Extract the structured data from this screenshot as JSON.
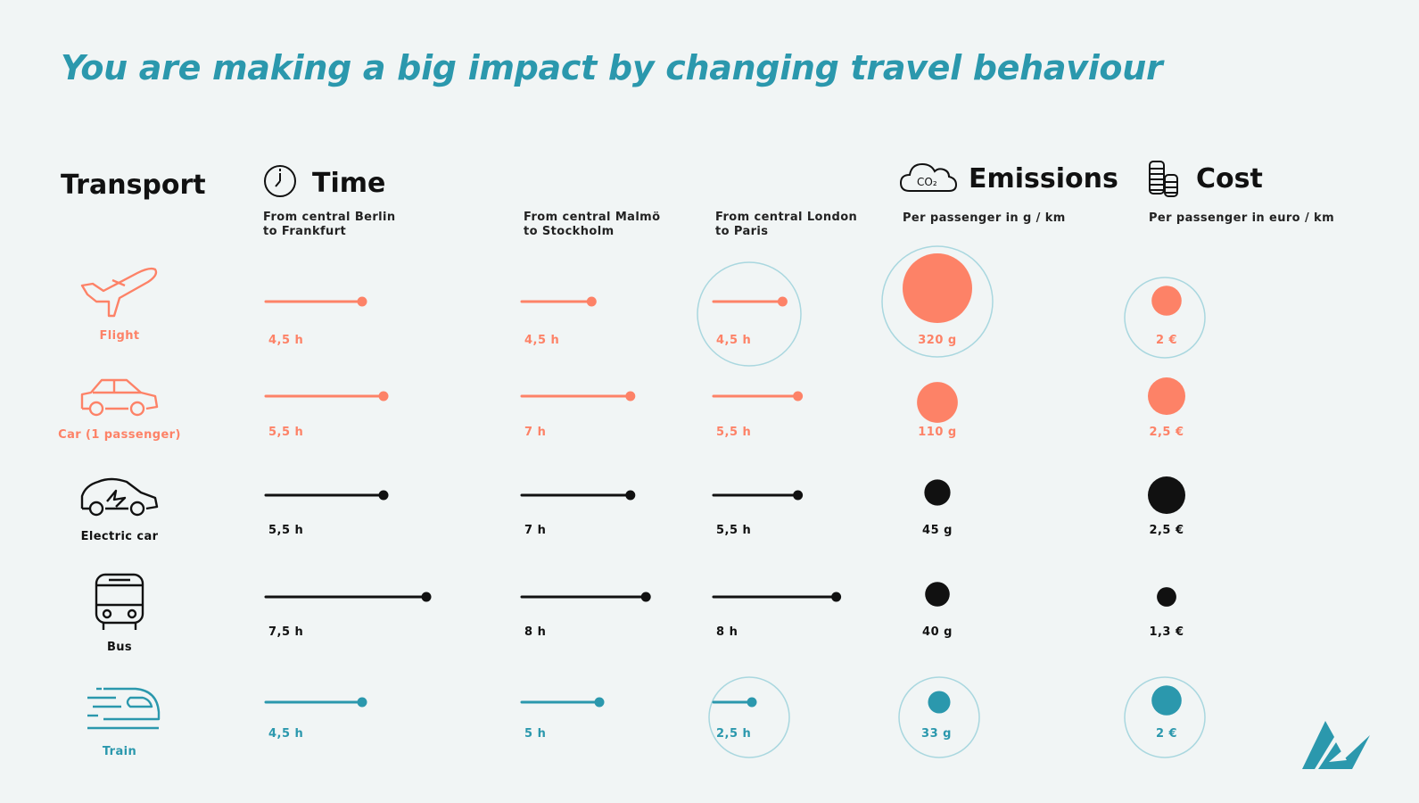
{
  "title": "You are making a big impact by changing travel behaviour",
  "headers": {
    "transport": "Transport",
    "time": "Time",
    "emissions": "Emissions",
    "cost": "Cost"
  },
  "subheaders": {
    "time_berlin": [
      "From central Berlin",
      "to Frankfurt"
    ],
    "time_malmo": [
      "From central Malmö",
      "to Stockholm"
    ],
    "time_london": [
      "From central London",
      "to Paris"
    ],
    "emissions": "Per passenger in g / km",
    "cost": "Per passenger in euro / km"
  },
  "colors": {
    "title": "#2b98ad",
    "salmon": "#fd8267",
    "black": "#111111",
    "teal": "#2b98ad",
    "ring": "#a9d7df"
  },
  "icons": [
    "clock-icon",
    "co2-cloud-icon",
    "coins-icon",
    "airplane-icon",
    "car-icon",
    "electric-car-icon",
    "bus-icon",
    "train-icon",
    "brand-logo-icon"
  ],
  "rows": [
    {
      "key": "flight",
      "label": "Flight",
      "color": "salmon",
      "berlin": {
        "hours": 4.5,
        "text": "4,5 h"
      },
      "malmo": {
        "hours": 4.5,
        "text": "4,5 h"
      },
      "london": {
        "hours": 4.5,
        "text": "4,5 h",
        "ring": true
      },
      "emissions": {
        "value": 320,
        "text": "320 g",
        "ring": true
      },
      "cost": {
        "value": 2,
        "text": "2 €",
        "ring": true
      }
    },
    {
      "key": "car",
      "label": "Car (1 passenger)",
      "color": "salmon",
      "berlin": {
        "hours": 5.5,
        "text": "5,5 h"
      },
      "malmo": {
        "hours": 7,
        "text": "7 h"
      },
      "london": {
        "hours": 5.5,
        "text": "5,5 h",
        "ring": false
      },
      "emissions": {
        "value": 110,
        "text": "110 g",
        "ring": false
      },
      "cost": {
        "value": 2.5,
        "text": "2,5 €",
        "ring": false
      }
    },
    {
      "key": "ecar",
      "label": "Electric car",
      "color": "black",
      "berlin": {
        "hours": 5.5,
        "text": "5,5 h"
      },
      "malmo": {
        "hours": 7,
        "text": "7 h"
      },
      "london": {
        "hours": 5.5,
        "text": "5,5 h",
        "ring": false
      },
      "emissions": {
        "value": 45,
        "text": "45 g",
        "ring": false
      },
      "cost": {
        "value": 2.5,
        "text": "2,5 €",
        "ring": false
      }
    },
    {
      "key": "bus",
      "label": "Bus",
      "color": "black",
      "berlin": {
        "hours": 7.5,
        "text": "7,5 h"
      },
      "malmo": {
        "hours": 8,
        "text": "8 h"
      },
      "london": {
        "hours": 8,
        "text": "8 h",
        "ring": false
      },
      "emissions": {
        "value": 40,
        "text": "40 g",
        "ring": false
      },
      "cost": {
        "value": 1.3,
        "text": "1,3 €",
        "ring": false
      }
    },
    {
      "key": "train",
      "label": "Train",
      "color": "teal",
      "berlin": {
        "hours": 4.5,
        "text": "4,5 h"
      },
      "malmo": {
        "hours": 5,
        "text": "5 h"
      },
      "london": {
        "hours": 2.5,
        "text": "2,5 h",
        "ring": true
      },
      "emissions": {
        "value": 33,
        "text": "33 g",
        "ring": true
      },
      "cost": {
        "value": 2,
        "text": "2 €",
        "ring": true
      }
    }
  ]
}
